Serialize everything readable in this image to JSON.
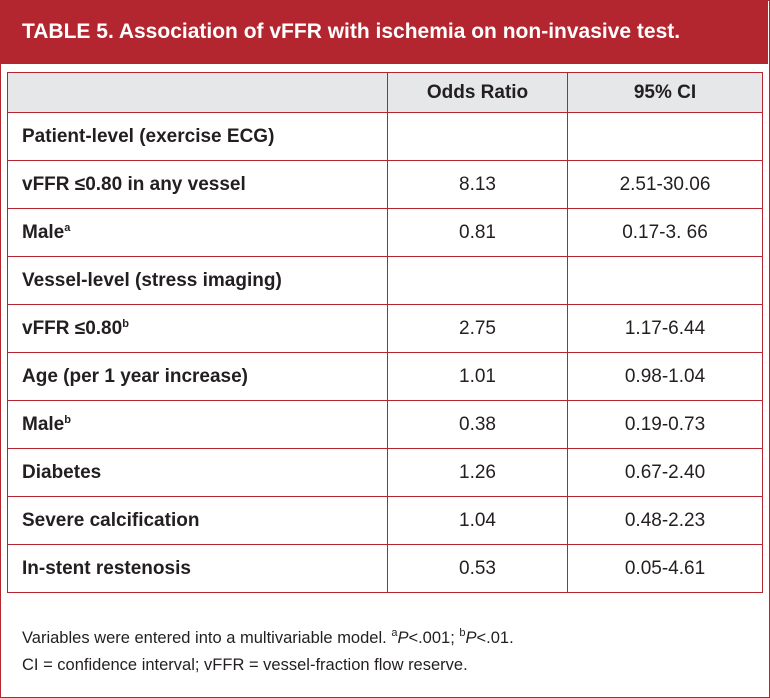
{
  "header": {
    "title": "TABLE 5. Association of vFFR with ischemia on non-invasive test."
  },
  "table": {
    "columns": [
      "Odds Ratio",
      "95% CI"
    ],
    "rows": [
      {
        "label": "Patient-level (exercise ECG)"
      },
      {
        "label": "vFFR ≤0.80 in any vessel",
        "odds_ratio": "8.13",
        "ci": "2.51-30.06"
      },
      {
        "label": "Male",
        "sup": "a",
        "odds_ratio": "0.81",
        "ci": "0.17-3. 66"
      },
      {
        "label": "Vessel-level (stress imaging)"
      },
      {
        "label": "vFFR ≤0.80",
        "sup": "b",
        "odds_ratio": "2.75",
        "ci": "1.17-6.44"
      },
      {
        "label": "Age (per 1 year increase)",
        "odds_ratio": "1.01",
        "ci": "0.98-1.04"
      },
      {
        "label": "Male",
        "sup": "b",
        "odds_ratio": "0.38",
        "ci": "0.19-0.73"
      },
      {
        "label": "Diabetes",
        "odds_ratio": "1.26",
        "ci": "0.67-2.40"
      },
      {
        "label": "Severe calcification",
        "odds_ratio": "1.04",
        "ci": "0.48-2.23"
      },
      {
        "label": "In-stent restenosis",
        "odds_ratio": "0.53",
        "ci": "0.05-4.61"
      }
    ]
  },
  "footnote": {
    "lines": [
      [
        {
          "text": "Variables were entered into a multivariable model. "
        },
        {
          "sup": "a"
        },
        {
          "italic": "P"
        },
        {
          "text": "<.001; "
        },
        {
          "sup": "b"
        },
        {
          "italic": "P"
        },
        {
          "text": "<.01."
        }
      ],
      [
        {
          "text": "CI = confidence interval; vFFR = vessel-fraction flow reserve."
        }
      ]
    ]
  }
}
